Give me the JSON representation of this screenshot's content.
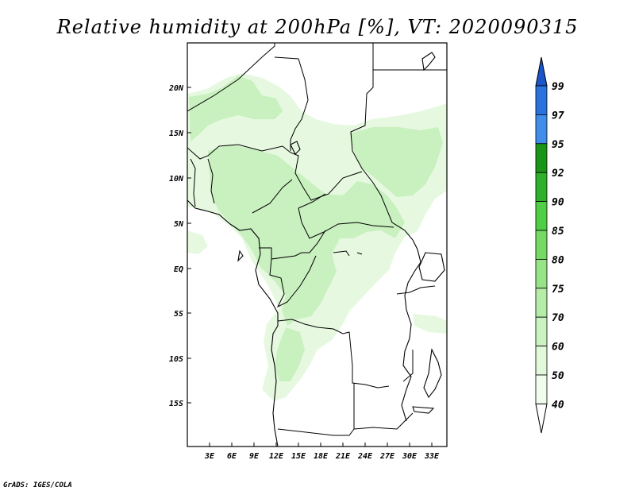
{
  "title": "Relative humidity at 200hPa [%], VT: 2020090315",
  "credit": "GrADS: IGES/COLA",
  "map": {
    "lon_range": [
      0,
      35
    ],
    "lat_range": [
      -20,
      25
    ],
    "lat_ticks": [
      "20N",
      "15N",
      "10N",
      "5N",
      "EQ",
      "5S",
      "10S",
      "15S"
    ],
    "lon_ticks": [
      "3E",
      "6E",
      "9E",
      "12E",
      "15E",
      "18E",
      "21E",
      "24E",
      "27E",
      "30E",
      "33E"
    ],
    "land_color": "#ffffff",
    "humidity_color_light": "#e6f9e0",
    "humidity_color_mid": "#c9f0bf"
  },
  "colorbar": {
    "levels": [
      "99",
      "97",
      "95",
      "92",
      "90",
      "85",
      "80",
      "75",
      "70",
      "60",
      "50",
      "40"
    ],
    "colors": {
      "40-50": "#f0fcec",
      "50-60": "#e1f8da",
      "60-70": "#cbf2c1",
      "70-75": "#b5eca8",
      "75-80": "#96e487",
      "80-85": "#74da63",
      "85-90": "#4fcf43",
      "90-92": "#30b02a",
      "92-95": "#1a9617",
      "95-97": "#3f8fea",
      "97-99": "#2a72de",
      ">99": "#1a55c9"
    }
  }
}
